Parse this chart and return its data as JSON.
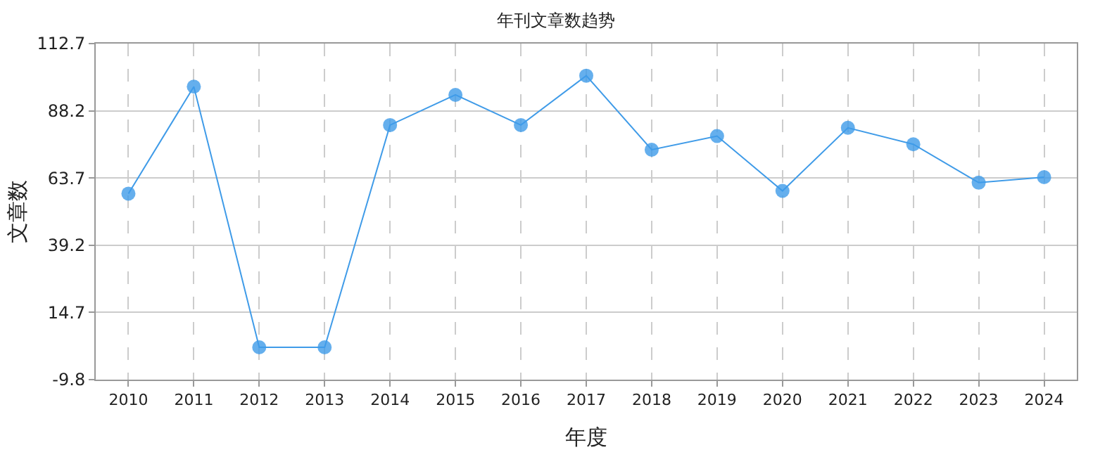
{
  "chart_data": {
    "type": "line",
    "title": "年刊文章数趋势",
    "xlabel": "年度",
    "ylabel": "文章数",
    "categories": [
      "2010",
      "2011",
      "2012",
      "2013",
      "2014",
      "2015",
      "2016",
      "2017",
      "2018",
      "2019",
      "2020",
      "2021",
      "2022",
      "2023",
      "2024"
    ],
    "series": [
      {
        "color": "#3f9be8",
        "values": [
          58,
          97,
          2,
          2,
          83,
          94,
          83,
          101,
          74,
          79,
          59,
          82,
          76,
          62,
          64
        ]
      }
    ],
    "ylim": [
      -9.8,
      112.7
    ],
    "yticks": [
      -9.8,
      14.7,
      39.2,
      63.7,
      88.2,
      112.7
    ],
    "grid": true,
    "marker": "circle",
    "line_style": "solid"
  }
}
